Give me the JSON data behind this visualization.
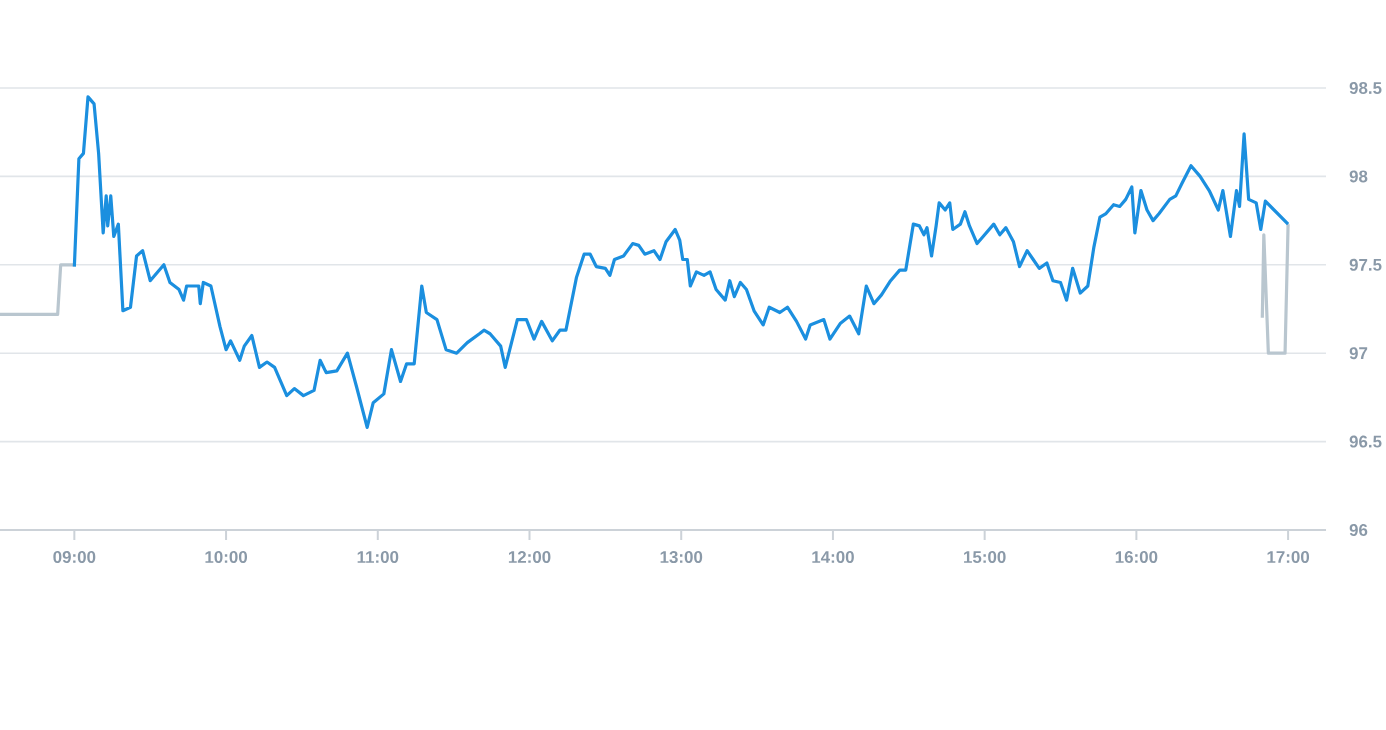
{
  "chart_data": {
    "type": "line",
    "xlim": [
      8.51,
      17.25
    ],
    "ylim": [
      96,
      98.5
    ],
    "xticks": [
      {
        "value": 9,
        "label": "09:00"
      },
      {
        "value": 10,
        "label": "10:00"
      },
      {
        "value": 11,
        "label": "11:00"
      },
      {
        "value": 12,
        "label": "12:00"
      },
      {
        "value": 13,
        "label": "13:00"
      },
      {
        "value": 14,
        "label": "14:00"
      },
      {
        "value": 15,
        "label": "15:00"
      },
      {
        "value": 16,
        "label": "16:00"
      },
      {
        "value": 17,
        "label": "17:00"
      }
    ],
    "yticks": [
      96,
      96.5,
      97,
      97.5,
      98,
      98.5
    ],
    "grid": "y",
    "line_style": "solid",
    "series": [
      {
        "color": "#b9c6cf",
        "x": [
          8.51,
          8.89,
          8.91,
          9.0
        ],
        "values": [
          97.22,
          97.22,
          97.5,
          97.5
        ]
      },
      {
        "color": "#b9c6cf",
        "x": [
          16.83,
          16.84,
          16.87,
          16.98,
          17.0
        ],
        "values": [
          97.2,
          97.67,
          97.0,
          97.0,
          97.73
        ]
      },
      {
        "color": "#1b8fdf",
        "x": [
          9.0,
          9.03,
          9.06,
          9.09,
          9.13,
          9.16,
          9.19,
          9.21,
          9.22,
          9.24,
          9.26,
          9.29,
          9.32,
          9.37,
          9.41,
          9.45,
          9.5,
          9.59,
          9.63,
          9.69,
          9.72,
          9.74,
          9.82,
          9.83,
          9.85,
          9.9,
          9.96,
          10.0,
          10.03,
          10.09,
          10.12,
          10.17,
          10.22,
          10.27,
          10.32,
          10.4,
          10.45,
          10.51,
          10.58,
          10.62,
          10.66,
          10.73,
          10.8,
          10.86,
          10.93,
          10.97,
          11.04,
          11.09,
          11.15,
          11.19,
          11.24,
          11.29,
          11.32,
          11.39,
          11.45,
          11.52,
          11.59,
          11.67,
          11.7,
          11.74,
          11.81,
          11.84,
          11.92,
          11.98,
          12.03,
          12.08,
          12.15,
          12.2,
          12.24,
          12.31,
          12.36,
          12.4,
          12.44,
          12.5,
          12.53,
          12.56,
          12.62,
          12.68,
          12.72,
          12.76,
          12.82,
          12.86,
          12.9,
          12.96,
          12.99,
          13.01,
          13.04,
          13.06,
          13.1,
          13.15,
          13.19,
          13.23,
          13.29,
          13.32,
          13.35,
          13.39,
          13.43,
          13.48,
          13.54,
          13.58,
          13.65,
          13.7,
          13.76,
          13.82,
          13.85,
          13.94,
          13.98,
          14.05,
          14.11,
          14.17,
          14.22,
          14.27,
          14.32,
          14.38,
          14.44,
          14.48,
          14.53,
          14.57,
          14.6,
          14.62,
          14.65,
          14.68,
          14.7,
          14.74,
          14.77,
          14.79,
          14.84,
          14.87,
          14.9,
          14.95,
          14.99,
          15.06,
          15.1,
          15.14,
          15.19,
          15.23,
          15.28,
          15.32,
          15.36,
          15.41,
          15.45,
          15.5,
          15.54,
          15.58,
          15.63,
          15.68,
          15.72,
          15.76,
          15.8,
          15.85,
          15.89,
          15.93,
          15.97,
          15.99,
          16.03,
          16.07,
          16.11,
          16.15,
          16.22,
          16.26,
          16.3,
          16.36,
          16.42,
          16.48,
          16.54,
          16.57,
          16.62,
          16.66,
          16.68,
          16.71,
          16.74,
          16.79,
          16.82,
          16.85,
          17.0
        ],
        "values": [
          97.49,
          98.1,
          98.13,
          98.45,
          98.41,
          98.13,
          97.68,
          97.89,
          97.72,
          97.89,
          97.66,
          97.73,
          97.24,
          97.26,
          97.55,
          97.58,
          97.41,
          97.5,
          97.4,
          97.36,
          97.3,
          97.38,
          97.38,
          97.28,
          97.4,
          97.38,
          97.15,
          97.02,
          97.07,
          96.96,
          97.04,
          97.1,
          96.92,
          96.95,
          96.92,
          96.76,
          96.8,
          96.76,
          96.79,
          96.96,
          96.89,
          96.9,
          97.0,
          96.81,
          96.58,
          96.72,
          96.77,
          97.02,
          96.84,
          96.94,
          96.94,
          97.38,
          97.23,
          97.19,
          97.02,
          97.0,
          97.06,
          97.11,
          97.13,
          97.11,
          97.04,
          96.92,
          97.19,
          97.19,
          97.08,
          97.18,
          97.07,
          97.13,
          97.13,
          97.43,
          97.56,
          97.56,
          97.49,
          97.48,
          97.44,
          97.53,
          97.55,
          97.62,
          97.61,
          97.56,
          97.58,
          97.53,
          97.63,
          97.7,
          97.64,
          97.53,
          97.53,
          97.38,
          97.46,
          97.44,
          97.46,
          97.36,
          97.3,
          97.41,
          97.32,
          97.4,
          97.36,
          97.24,
          97.16,
          97.26,
          97.23,
          97.26,
          97.18,
          97.08,
          97.16,
          97.19,
          97.08,
          97.17,
          97.21,
          97.11,
          97.38,
          97.28,
          97.33,
          97.41,
          97.47,
          97.47,
          97.73,
          97.72,
          97.67,
          97.71,
          97.55,
          97.72,
          97.85,
          97.81,
          97.85,
          97.7,
          97.73,
          97.8,
          97.72,
          97.62,
          97.66,
          97.73,
          97.67,
          97.71,
          97.63,
          97.49,
          97.58,
          97.53,
          97.48,
          97.51,
          97.41,
          97.4,
          97.3,
          97.48,
          97.34,
          97.38,
          97.6,
          97.77,
          97.79,
          97.84,
          97.83,
          97.87,
          97.94,
          97.68,
          97.92,
          97.81,
          97.75,
          97.79,
          97.87,
          97.89,
          97.96,
          98.06,
          98.0,
          97.92,
          97.81,
          97.92,
          97.66,
          97.92,
          97.83,
          98.24,
          97.87,
          97.85,
          97.7,
          97.86,
          97.73
        ]
      }
    ]
  }
}
